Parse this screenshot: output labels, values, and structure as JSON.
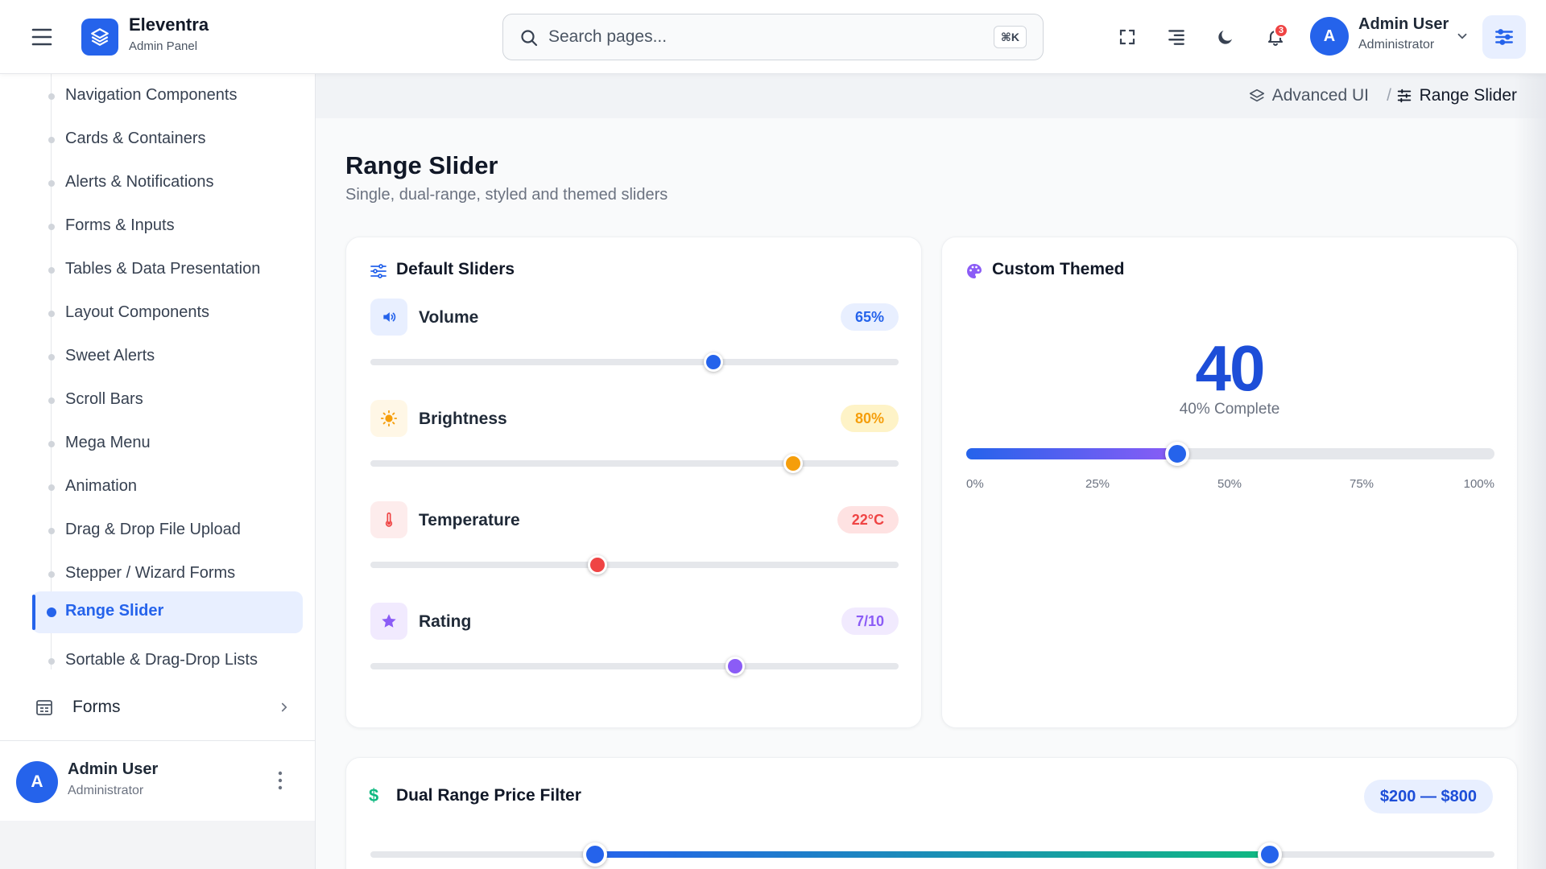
{
  "header": {
    "brand_name": "Eleventra",
    "brand_sub": "Admin Panel",
    "search_placeholder": "Search pages...",
    "search_shortcut": "⌘K",
    "notification_count": "3",
    "user": {
      "initial": "A",
      "name": "Admin User",
      "role": "Administrator"
    }
  },
  "sidebar": {
    "submenu": [
      {
        "label": "Navigation Components"
      },
      {
        "label": "Cards & Containers"
      },
      {
        "label": "Alerts & Notifications"
      },
      {
        "label": "Forms & Inputs"
      },
      {
        "label": "Tables & Data Presentation"
      },
      {
        "label": "Layout Components"
      },
      {
        "label": "Sweet Alerts"
      },
      {
        "label": "Scroll Bars"
      },
      {
        "label": "Mega Menu"
      },
      {
        "label": "Animation"
      },
      {
        "label": "Drag & Drop File Upload"
      },
      {
        "label": "Stepper / Wizard Forms"
      },
      {
        "label": "Range Slider",
        "active": true
      },
      {
        "label": "Sortable & Drag-Drop Lists"
      }
    ],
    "forms_label": "Forms",
    "footer_user": {
      "initial": "A",
      "name": "Admin User",
      "role": "Administrator"
    }
  },
  "breadcrumb": {
    "parent": "Advanced UI",
    "separator": "/",
    "current": "Range Slider"
  },
  "page": {
    "title": "Range Slider",
    "subtitle": "Single, dual-range, styled and themed sliders"
  },
  "default_sliders": {
    "title": "Default Sliders",
    "items": [
      {
        "label": "Volume",
        "value_text": "65%",
        "fraction": 0.65,
        "icon": "volume-icon",
        "color": "#2563eb",
        "badge_bg": "#e8efff",
        "icon_bg": "#e8efff"
      },
      {
        "label": "Brightness",
        "value_text": "80%",
        "fraction": 0.8,
        "icon": "sun-icon",
        "color": "#f59e0b",
        "badge_bg": "#fef3c7",
        "icon_bg": "#fff7e6"
      },
      {
        "label": "Temperature",
        "value_text": "22°C",
        "fraction": 0.43,
        "icon": "thermometer-icon",
        "color": "#ef4444",
        "badge_bg": "#fee2e2",
        "icon_bg": "#fdecec"
      },
      {
        "label": "Rating",
        "value_text": "7/10",
        "fraction": 0.69,
        "icon": "star-icon",
        "color": "#8b5cf6",
        "badge_bg": "#f1eafe",
        "icon_bg": "#f1eafe"
      }
    ]
  },
  "custom_themed": {
    "title": "Custom Themed",
    "value": "40",
    "caption": "40% Complete",
    "fraction": 0.4,
    "ticks": [
      "0%",
      "25%",
      "50%",
      "75%",
      "100%"
    ]
  },
  "price_filter": {
    "title": "Dual Range Price Filter",
    "range_text": "$200 — $800",
    "min_fraction": 0.2,
    "max_fraction": 0.8
  },
  "colors": {
    "accent": "#2563eb",
    "brand": "#2563eb"
  }
}
